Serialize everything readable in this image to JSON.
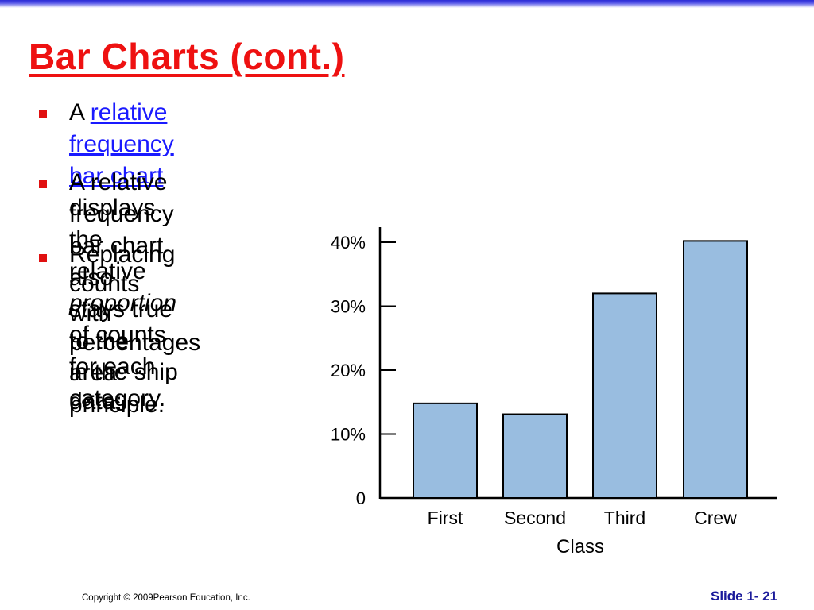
{
  "slide": {
    "title": "Bar Charts (cont.)",
    "bullets": [
      {
        "pre": "A ",
        "link": "relative frequency bar chart ",
        "post": "displays the relative",
        "line2_italic": "proportion",
        "line2_rest": " of counts for each category."
      },
      {
        "line1": "A relative frequency bar chart also stays true to the area",
        "line2": "principle."
      },
      {
        "line1": "Replacing counts",
        "line2": "with percentages",
        "line3": "in the ship data:"
      }
    ],
    "footer_copyright": "Copyright © 2009Pearson Education, Inc.",
    "footer_slide": "Slide 1- 21"
  },
  "colors": {
    "title": "#ee1111",
    "link": "#1a1aff",
    "bar_fill": "#99bde0",
    "bullet": "#e01010",
    "footer_slide": "#1a1a9a"
  },
  "chart_data": {
    "type": "bar",
    "categories": [
      "First",
      "Second",
      "Third",
      "Crew"
    ],
    "values": [
      14.8,
      13.1,
      32.0,
      40.2
    ],
    "xlabel": "Class",
    "ylabel": "",
    "ylim": [
      0,
      40
    ],
    "yticks": [
      "0",
      "10%",
      "20%",
      "30%",
      "40%"
    ],
    "ytick_values": [
      0,
      10,
      20,
      30,
      40
    ],
    "grid": false
  }
}
